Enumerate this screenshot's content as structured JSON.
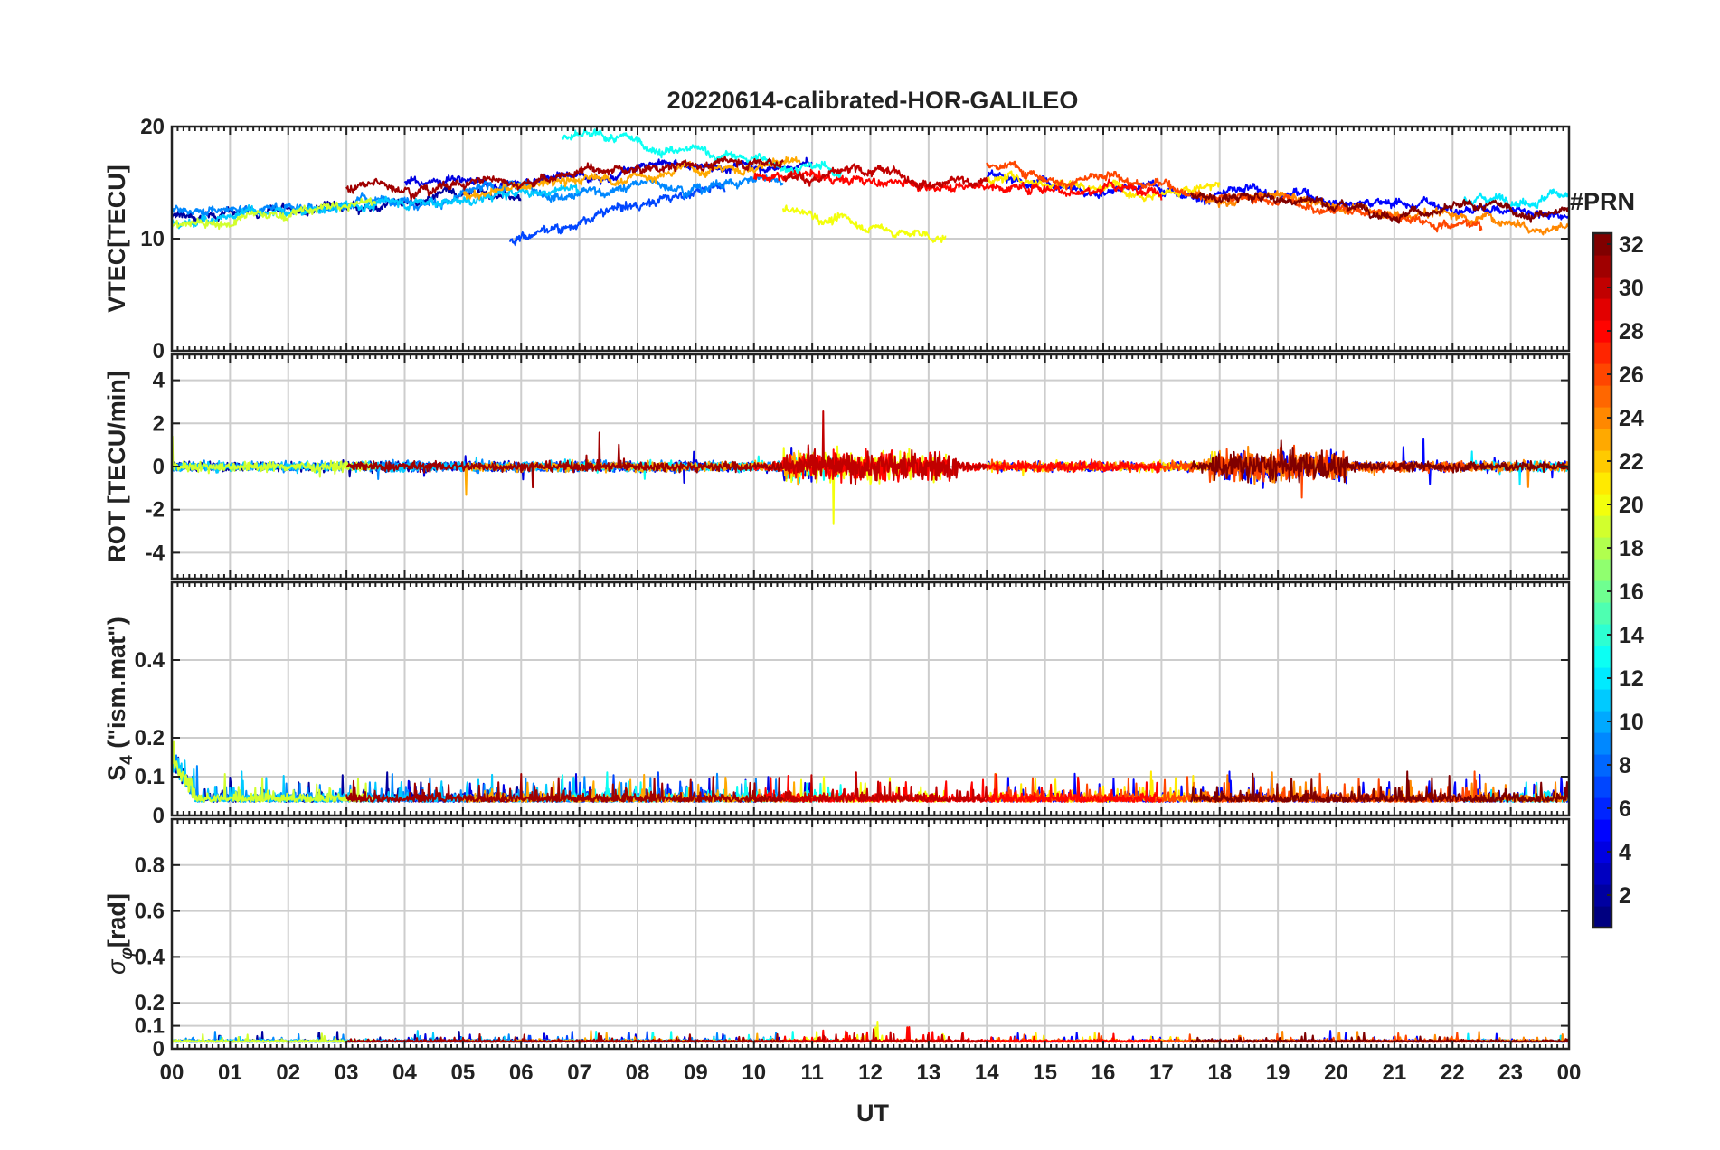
{
  "chart_data": {
    "type": "line",
    "title": "20220614-calibrated-HOR-GALILEO",
    "xlabel": "UT",
    "x_ticks": [
      "00",
      "01",
      "02",
      "03",
      "04",
      "05",
      "06",
      "07",
      "08",
      "09",
      "10",
      "11",
      "12",
      "13",
      "14",
      "15",
      "16",
      "17",
      "18",
      "19",
      "20",
      "21",
      "22",
      "23",
      "00"
    ],
    "xlim": [
      0,
      24
    ],
    "panels": [
      {
        "id": "vtec",
        "ylabel": "VTEC[TECU]",
        "ylim": [
          0,
          20
        ],
        "yticks": [
          0,
          10,
          20
        ],
        "ytick_labels": [
          "0",
          "10",
          "20"
        ],
        "grid": true
      },
      {
        "id": "rot",
        "ylabel": "ROT [TECU/min]",
        "ylim": [
          -5.2,
          5.2
        ],
        "yticks": [
          -4,
          -2,
          0,
          2,
          4
        ],
        "ytick_labels": [
          "-4",
          "-2",
          "0",
          "2",
          "4"
        ],
        "grid": true
      },
      {
        "id": "s4",
        "ylabel_main": "S",
        "ylabel_sub": "4",
        "ylabel_rest": " (\"ism.mat\")",
        "ylim": [
          0,
          0.6
        ],
        "yticks": [
          0,
          0.1,
          0.2,
          0.4
        ],
        "ytick_labels": [
          "0",
          "0.1",
          "0.2",
          "0.4"
        ],
        "grid": true
      },
      {
        "id": "sigphi",
        "ylabel_main": "σ",
        "ylabel_sub": "φ",
        "ylabel_rest": "[rad]",
        "ylim": [
          0,
          1
        ],
        "yticks": [
          0,
          0.1,
          0.2,
          0.4,
          0.6,
          0.8
        ],
        "ytick_labels": [
          "0",
          "0.1",
          "0.2",
          "0.4",
          "0.6",
          "0.8"
        ],
        "grid": true
      }
    ],
    "series": [
      {
        "prn": 2,
        "start": 0.0,
        "end": 6.0,
        "vtec_base": 12.0,
        "vtec_drift": 2.0
      },
      {
        "prn": 4,
        "start": 4.0,
        "end": 11.0,
        "vtec_base": 15.0,
        "vtec_drift": 2.0
      },
      {
        "prn": 5,
        "start": 14.0,
        "end": 24.0,
        "vtec_base": 15.5,
        "vtec_drift": -3.0
      },
      {
        "prn": 7,
        "start": 5.8,
        "end": 9.5,
        "vtec_base": 10.0,
        "vtec_drift": 5.0
      },
      {
        "prn": 9,
        "start": 0.0,
        "end": 10.5,
        "vtec_base": 12.5,
        "vtec_drift": 3.0
      },
      {
        "prn": 11,
        "start": 0.0,
        "end": 7.0,
        "vtec_base": 11.5,
        "vtec_drift": 3.0
      },
      {
        "prn": 12,
        "start": 22.2,
        "end": 24.0,
        "vtec_base": 13.5,
        "vtec_drift": 1.0
      },
      {
        "prn": 13,
        "start": 6.7,
        "end": 11.5,
        "vtec_base": 19.0,
        "vtec_drift": -3.0
      },
      {
        "prn": 19,
        "start": 0.0,
        "end": 3.5,
        "vtec_base": 11.0,
        "vtec_drift": 2.0
      },
      {
        "prn": 20,
        "start": 10.5,
        "end": 13.3,
        "vtec_base": 12.5,
        "vtec_drift": -2.5
      },
      {
        "prn": 21,
        "start": 14.0,
        "end": 18.0,
        "vtec_base": 15.5,
        "vtec_drift": -1.0
      },
      {
        "prn": 23,
        "start": 5.0,
        "end": 10.8,
        "vtec_base": 14.0,
        "vtec_drift": 3.0
      },
      {
        "prn": 24,
        "start": 17.5,
        "end": 24.0,
        "vtec_base": 14.0,
        "vtec_drift": -2.5
      },
      {
        "prn": 26,
        "start": 14.0,
        "end": 22.5,
        "vtec_base": 16.5,
        "vtec_drift": -5.0
      },
      {
        "prn": 28,
        "start": 10.0,
        "end": 17.0,
        "vtec_base": 15.5,
        "vtec_drift": -1.0
      },
      {
        "prn": 30,
        "start": 10.5,
        "end": 14.0,
        "vtec_base": 15.5,
        "vtec_drift": 0.0
      },
      {
        "prn": 31,
        "start": 3.0,
        "end": 10.5,
        "vtec_base": 14.5,
        "vtec_drift": 2.5
      },
      {
        "prn": 32,
        "start": 17.5,
        "end": 24.0,
        "vtec_base": 14.0,
        "vtec_drift": -2.0
      }
    ],
    "colorbar": {
      "label": "#PRN",
      "range": [
        1,
        32
      ],
      "ticks": [
        "2",
        "4",
        "6",
        "8",
        "10",
        "12",
        "14",
        "16",
        "18",
        "20",
        "22",
        "24",
        "26",
        "28",
        "30",
        "32"
      ],
      "colormap": "jet"
    }
  }
}
